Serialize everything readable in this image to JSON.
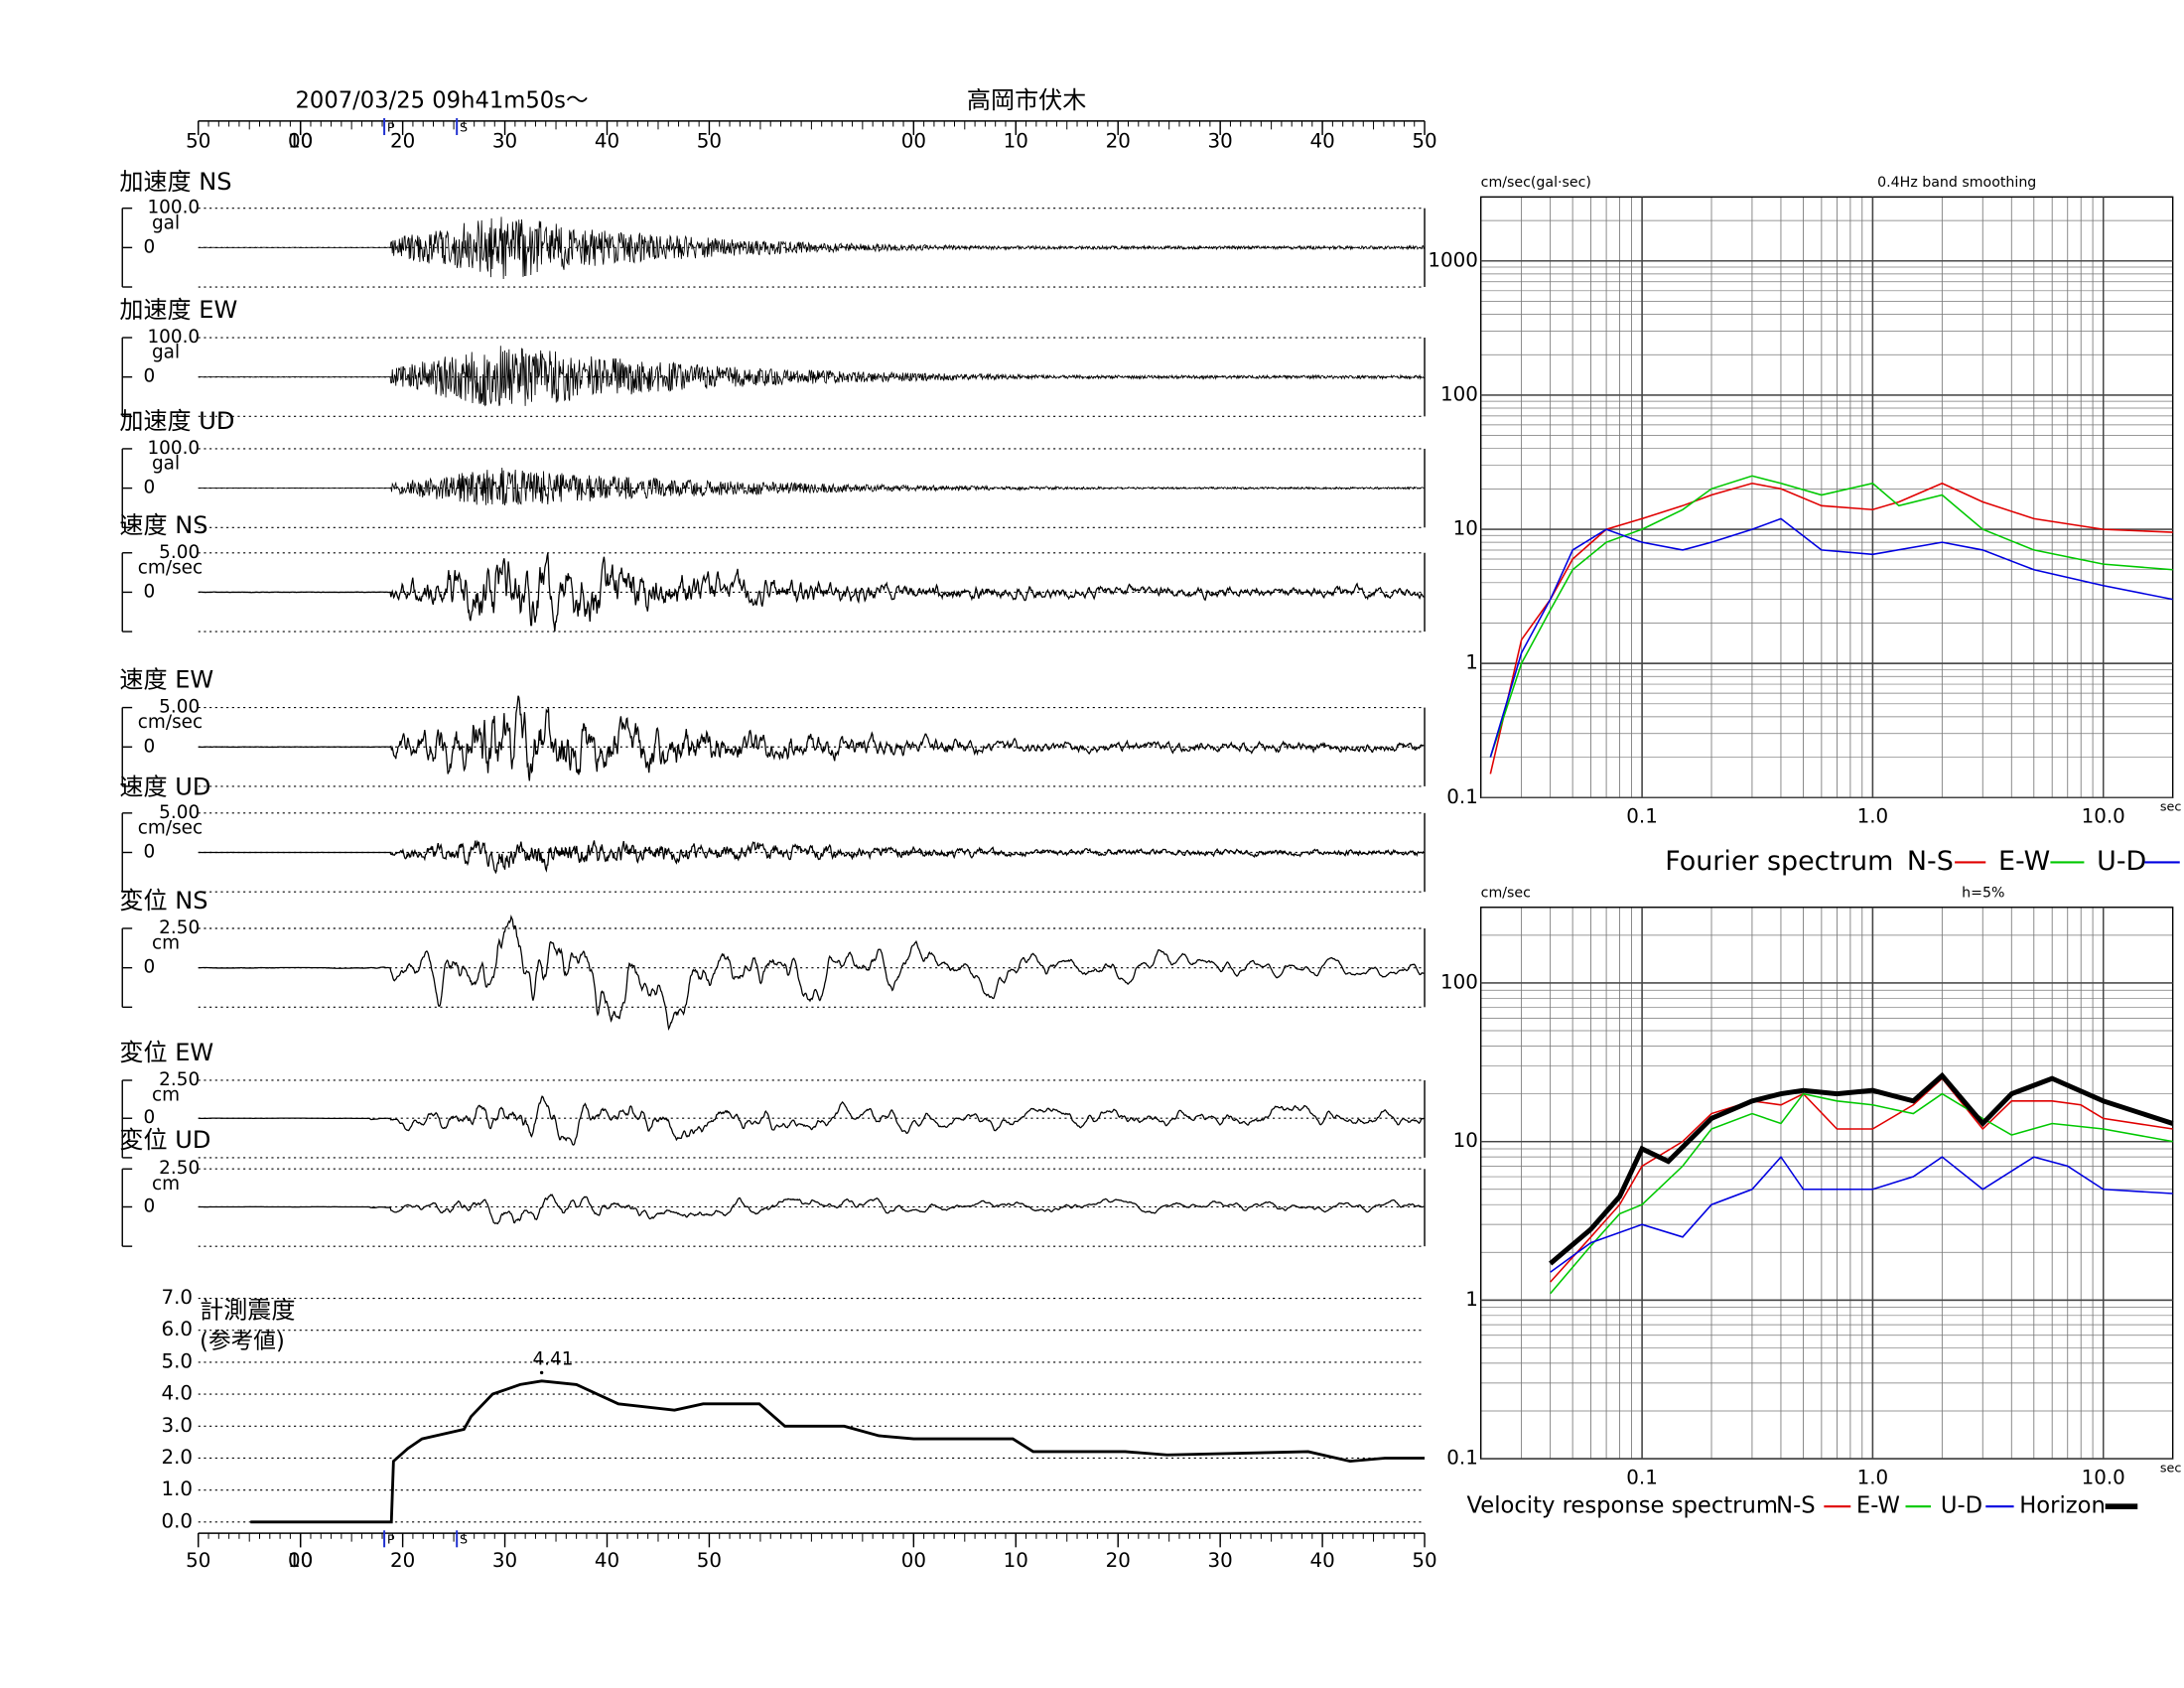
{
  "header": {
    "date": "2007/03/25  09h41m50s～",
    "station": "高岡市伏木"
  },
  "time_axis": {
    "xlim": [
      0,
      120
    ],
    "xticks": [
      {
        "value": 0,
        "label": "50"
      },
      {
        "value": 10,
        "label": "00"
      },
      10,
      20,
      30,
      40,
      50,
      {
        "value": 70,
        "label": "00"
      },
      {
        "value": 80,
        "label": "10"
      },
      {
        "value": 90,
        "label": "20"
      },
      {
        "value": 100,
        "label": "30"
      },
      {
        "value": 110,
        "label": "40"
      },
      {
        "value": 120,
        "label": "50"
      }
    ],
    "p_label": "P",
    "s_label": "S",
    "p_time": 18.2,
    "s_time": 25.3
  },
  "traces": [
    {
      "label": "加速度 NS",
      "scale": "100.0",
      "unit": "gal",
      "zero": "0"
    },
    {
      "label": "加速度 EW",
      "scale": "100.0",
      "unit": "gal",
      "zero": "0"
    },
    {
      "label": "加速度 UD",
      "scale": "100.0",
      "unit": "gal",
      "zero": "0"
    },
    {
      "label": "速度 NS",
      "scale": "5.00",
      "unit": "cm/sec",
      "zero": "0"
    },
    {
      "label": "速度 EW",
      "scale": "5.00",
      "unit": "cm/sec",
      "zero": "0"
    },
    {
      "label": "速度 UD",
      "scale": "5.00",
      "unit": "cm/sec",
      "zero": "0"
    },
    {
      "label": "変位 NS",
      "scale": "2.50",
      "unit": "cm",
      "zero": "0"
    },
    {
      "label": "変位 EW",
      "scale": "2.50",
      "unit": "cm",
      "zero": "0"
    },
    {
      "label": "変位 UD",
      "scale": "2.50",
      "unit": "cm",
      "zero": "0"
    }
  ],
  "intensity": {
    "title": "計測震度",
    "subtitle": "(参考値)",
    "ylim": [
      0,
      7
    ],
    "yticks": [
      {
        "value": 0,
        "label": "0.0"
      },
      {
        "value": 1,
        "label": "1.0"
      },
      {
        "value": 2,
        "label": "2.0"
      },
      {
        "value": 3,
        "label": "3.0"
      },
      {
        "value": 4,
        "label": "4.0"
      },
      {
        "value": 5,
        "label": "5.0"
      },
      {
        "value": 6,
        "label": "6.0"
      },
      {
        "value": 7,
        "label": "7.0"
      }
    ],
    "x": [
      5.1,
      18.9,
      19.1,
      20.5,
      21.9,
      26.0,
      26.7,
      28.8,
      31.5,
      33.6,
      37.0,
      41.1,
      46.6,
      49.4,
      54.9,
      57.4,
      63.2,
      66.6,
      70.0,
      79.7,
      81.7,
      90.7,
      94.8,
      108.6,
      112.7,
      116.1,
      120
    ],
    "values": [
      0,
      0,
      1.9,
      2.3,
      2.6,
      2.9,
      3.3,
      4.0,
      4.3,
      4.41,
      4.3,
      3.7,
      3.5,
      3.7,
      3.7,
      3.0,
      3.0,
      2.7,
      2.6,
      2.6,
      2.2,
      2.2,
      2.1,
      2.2,
      1.9,
      2.0,
      2.0
    ],
    "peak": 4.41,
    "peak_x": 33.6
  },
  "fourier": {
    "unit_label": "cm/sec(gal·sec)",
    "note": "0.4Hz band smoothing",
    "xlabel": "sec",
    "legend_title": "Fourier spectrum",
    "xlim": [
      0.02,
      20
    ],
    "ylim": [
      0.1,
      3000
    ],
    "log": true,
    "xticks": [
      0.1,
      {
        "value": 1,
        "label": "1.0"
      },
      {
        "value": 10,
        "label": "10.0"
      }
    ],
    "yticks": [
      0.1,
      1,
      10,
      100,
      1000
    ],
    "series": [
      {
        "name": "N-S",
        "color": "#e00000",
        "x": [
          0.022,
          0.03,
          0.04,
          0.05,
          0.07,
          0.1,
          0.15,
          0.2,
          0.3,
          0.4,
          0.6,
          1.0,
          1.3,
          2.0,
          3,
          5,
          10,
          20
        ],
        "values": [
          0.15,
          1.5,
          3,
          6,
          10,
          12,
          15,
          18,
          22,
          20,
          15,
          14,
          16,
          22,
          16,
          12,
          10,
          9.5
        ]
      },
      {
        "name": "E-W",
        "color": "#00c800",
        "x": [
          0.022,
          0.03,
          0.04,
          0.05,
          0.07,
          0.1,
          0.15,
          0.2,
          0.3,
          0.4,
          0.6,
          1.0,
          1.3,
          2.0,
          3,
          5,
          10,
          20
        ],
        "values": [
          0.2,
          1,
          2.5,
          5,
          8,
          10,
          14,
          20,
          25,
          22,
          18,
          22,
          15,
          18,
          10,
          7,
          5.5,
          5
        ]
      },
      {
        "name": "U-D",
        "color": "#0000e0",
        "x": [
          0.022,
          0.03,
          0.04,
          0.05,
          0.07,
          0.1,
          0.15,
          0.2,
          0.3,
          0.4,
          0.6,
          1.0,
          2.0,
          3,
          5,
          10,
          20
        ],
        "values": [
          0.2,
          1.2,
          3,
          7,
          10,
          8,
          7,
          8,
          10,
          12,
          7,
          6.5,
          8,
          7,
          5,
          3.8,
          3
        ]
      }
    ]
  },
  "response": {
    "unit_label": "cm/sec",
    "note": "h=5%",
    "xlabel": "sec",
    "legend_title": "Velocity response spectrum",
    "xlim": [
      0.02,
      20
    ],
    "ylim": [
      0.1,
      300
    ],
    "log": true,
    "xticks": [
      0.1,
      {
        "value": 1,
        "label": "1.0"
      },
      {
        "value": 10,
        "label": "10.0"
      }
    ],
    "yticks": [
      0.1,
      1,
      10,
      100
    ],
    "series": [
      {
        "name": "N-S",
        "color": "#e00000",
        "x": [
          0.04,
          0.06,
          0.08,
          0.1,
          0.15,
          0.2,
          0.3,
          0.4,
          0.5,
          0.7,
          1,
          1.5,
          2,
          3,
          4,
          6,
          8,
          10,
          20
        ],
        "values": [
          1.3,
          2.5,
          4,
          7,
          10,
          15,
          18,
          17,
          20,
          12,
          12,
          17,
          25,
          12,
          18,
          18,
          17,
          14,
          12
        ]
      },
      {
        "name": "E-W",
        "color": "#00c800",
        "x": [
          0.04,
          0.06,
          0.08,
          0.1,
          0.15,
          0.2,
          0.3,
          0.4,
          0.5,
          0.7,
          1,
          1.5,
          2,
          3,
          4,
          6,
          10,
          20
        ],
        "values": [
          1.1,
          2.2,
          3.5,
          4,
          7,
          12,
          15,
          13,
          20,
          18,
          17,
          15,
          20,
          14,
          11,
          13,
          12,
          10
        ]
      },
      {
        "name": "U-D",
        "color": "#0000e0",
        "x": [
          0.04,
          0.06,
          0.1,
          0.15,
          0.2,
          0.3,
          0.4,
          0.5,
          0.7,
          1,
          1.5,
          2,
          3,
          5,
          7,
          10,
          20
        ],
        "values": [
          1.5,
          2.3,
          3,
          2.5,
          4,
          5,
          8,
          5,
          5,
          5,
          6,
          8,
          5,
          8,
          7,
          5,
          4.7
        ]
      },
      {
        "name": "Horizon",
        "color": "#000000",
        "thick": true,
        "x": [
          0.04,
          0.06,
          0.08,
          0.1,
          0.13,
          0.2,
          0.3,
          0.4,
          0.5,
          0.7,
          1,
          1.5,
          2,
          3,
          4,
          6,
          10,
          20
        ],
        "values": [
          1.7,
          2.8,
          4.5,
          9,
          7.5,
          14,
          18,
          20,
          21,
          20,
          21,
          18,
          26,
          13,
          20,
          25,
          18,
          13
        ]
      }
    ]
  }
}
